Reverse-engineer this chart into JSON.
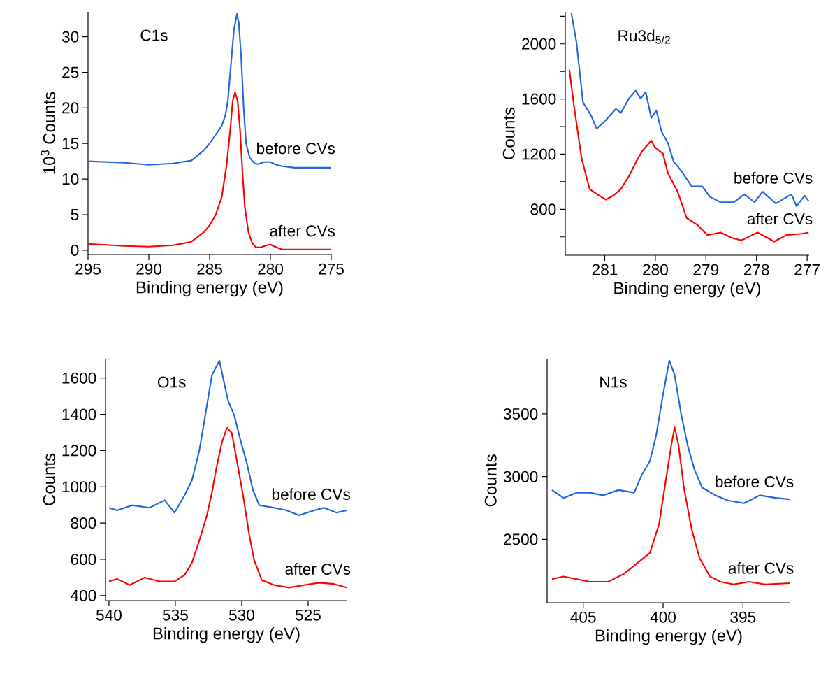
{
  "chart_data": [
    {
      "type": "line",
      "title": "C1s",
      "xlabel": "Binding energy (eV)",
      "ylabel": "10$^{3}$ Counts",
      "xlim": [
        295,
        275
      ],
      "ylim": [
        -0.6,
        33.5
      ],
      "xticks": [
        295,
        290,
        285,
        280,
        275
      ],
      "yticks": [
        0,
        5,
        10,
        15,
        20,
        25,
        30
      ],
      "series": [
        {
          "name": "before CVs",
          "color": "#2266dd",
          "x": [
            295,
            292,
            290,
            288,
            286.5,
            285.5,
            285,
            284,
            283.7,
            283.5,
            283.2,
            283.0,
            282.75,
            282.6,
            282.4,
            282.2,
            282.0,
            281.7,
            281.3,
            281.0,
            280.5,
            280.0,
            279.5,
            279.0,
            278.0,
            277.0,
            275.0
          ],
          "values": [
            12.5,
            12.3,
            12.0,
            12.2,
            12.6,
            14.0,
            15.0,
            17.5,
            19.0,
            21.0,
            27.0,
            31.0,
            33.2,
            32.0,
            27.0,
            20.0,
            15.0,
            13.0,
            12.2,
            12.1,
            12.4,
            12.4,
            12.0,
            11.8,
            11.6,
            11.6,
            11.6
          ]
        },
        {
          "name": "after CVs",
          "color": "#ff0000",
          "x": [
            295,
            292,
            290,
            288,
            286.5,
            285.5,
            285,
            284.5,
            284,
            283.6,
            283.3,
            283.1,
            282.9,
            282.7,
            282.5,
            282.3,
            282.1,
            281.8,
            281.5,
            281.2,
            280.8,
            280.3,
            280.0,
            279.5,
            279.0,
            277.0,
            275.0
          ],
          "values": [
            0.9,
            0.6,
            0.5,
            0.7,
            1.2,
            2.5,
            3.5,
            5.0,
            7.5,
            12.0,
            17.0,
            21.0,
            22.2,
            21.0,
            17.0,
            11.0,
            6.0,
            2.5,
            1.0,
            0.4,
            0.4,
            0.7,
            0.8,
            0.4,
            0.1,
            0.1,
            0.1
          ]
        }
      ]
    },
    {
      "type": "line",
      "title": "Ru3d$_{5/2}$",
      "xlabel": "Binding energy (eV)",
      "ylabel": "Counts",
      "xlim": [
        281.78,
        276.96
      ],
      "ylim": [
        467,
        2232
      ],
      "xticks": [
        281,
        280,
        279,
        278,
        277
      ],
      "yticks": [
        {
          "value": 600,
          "label": null
        },
        800,
        {
          "value": 1000,
          "label": null
        },
        1200,
        {
          "value": 1400,
          "label": null
        },
        1600,
        {
          "value": 1800,
          "label": null
        },
        2000,
        {
          "value": 2200,
          "label": null
        }
      ],
      "series": [
        {
          "name": "before CVs",
          "color": "#2266dd",
          "x": [
            281.66,
            281.56,
            281.43,
            281.27,
            281.16,
            280.99,
            280.78,
            280.68,
            280.52,
            280.39,
            280.29,
            280.19,
            280.08,
            279.98,
            279.88,
            279.75,
            279.64,
            279.49,
            279.28,
            279.07,
            278.92,
            278.71,
            278.45,
            278.24,
            278.04,
            277.88,
            277.62,
            277.31,
            277.21,
            277.05,
            276.97
          ],
          "values": [
            2225,
            2013,
            1575,
            1480,
            1385,
            1442,
            1528,
            1500,
            1604,
            1661,
            1604,
            1651,
            1461,
            1518,
            1366,
            1280,
            1147,
            1080,
            966,
            966,
            890,
            851,
            851,
            909,
            851,
            928,
            842,
            909,
            823,
            899,
            861
          ]
        },
        {
          "name": "after CVs",
          "color": "#ff0000",
          "x": [
            281.7,
            281.61,
            281.46,
            281.3,
            281.15,
            280.98,
            280.83,
            280.68,
            280.52,
            280.39,
            280.26,
            280.08,
            280.01,
            279.85,
            279.75,
            279.56,
            279.38,
            279.18,
            278.97,
            278.71,
            278.5,
            278.3,
            277.98,
            277.65,
            277.41,
            277.1,
            276.97
          ],
          "values": [
            1813,
            1556,
            1175,
            947,
            909,
            870,
            899,
            947,
            1042,
            1137,
            1223,
            1299,
            1251,
            1204,
            1061,
            928,
            737,
            690,
            613,
            632,
            594,
            575,
            632,
            566,
            613,
            623,
            632
          ]
        }
      ]
    },
    {
      "type": "line",
      "title": "O1s",
      "xlabel": "Binding energy (eV)",
      "ylabel": "Counts",
      "xlim": [
        540.26,
        522.05
      ],
      "ylim": [
        372,
        1707
      ],
      "xticks": [
        540,
        535,
        530,
        525
      ],
      "yticks": [
        400,
        600,
        800,
        1000,
        1200,
        1400,
        1600
      ],
      "series": [
        {
          "name": "before CVs",
          "color": "#2266dd",
          "x": [
            540,
            539.38,
            538.25,
            536.94,
            535.81,
            535.06,
            534.31,
            533.75,
            533.19,
            532.81,
            532.25,
            531.68,
            531.4,
            531.03,
            530.56,
            530.09,
            529.62,
            529.15,
            528.68,
            527.55,
            526.62,
            525.68,
            524.55,
            523.8,
            522.86,
            522.11
          ],
          "values": [
            884,
            870,
            898,
            884,
            926,
            857,
            953,
            1036,
            1201,
            1366,
            1614,
            1696,
            1600,
            1476,
            1394,
            1256,
            1132,
            981,
            898,
            884,
            870,
            843,
            870,
            884,
            857,
            870
          ]
        },
        {
          "name": "after CVs",
          "color": "#ff0000",
          "x": [
            540,
            539.38,
            538.44,
            537.32,
            536.19,
            535.06,
            534.31,
            533.75,
            533.19,
            532.62,
            532.25,
            531.87,
            531.5,
            531.12,
            530.75,
            530.37,
            529.9,
            529.43,
            529.06,
            528.49,
            527.55,
            526.43,
            525.3,
            524.17,
            523.05,
            522.1
          ],
          "values": [
            478,
            492,
            458,
            499,
            478,
            478,
            513,
            581,
            705,
            843,
            967,
            1118,
            1242,
            1325,
            1297,
            1146,
            953,
            733,
            595,
            485,
            458,
            444,
            458,
            471,
            464,
            444
          ]
        }
      ]
    },
    {
      "type": "line",
      "title": "N1s",
      "xlabel": "Binding energy (eV)",
      "ylabel": "Counts",
      "xlim": [
        407.26,
        392.04
      ],
      "ylim": [
        1995,
        3940
      ],
      "xticks": [
        405,
        400,
        395
      ],
      "yticks": [
        2500,
        3000,
        3500
      ],
      "series": [
        {
          "name": "before CVs",
          "color": "#2266dd",
          "x": [
            406.96,
            406.23,
            405.41,
            404.59,
            403.77,
            402.79,
            401.81,
            401.32,
            400.83,
            400.43,
            400.02,
            399.61,
            399.28,
            398.87,
            398.46,
            398.05,
            397.56,
            396.73,
            395.91,
            394.93,
            393.95,
            392.97,
            392.07
          ],
          "values": [
            2893,
            2830,
            2872,
            2872,
            2851,
            2893,
            2872,
            3018,
            3122,
            3331,
            3644,
            3926,
            3811,
            3498,
            3247,
            3060,
            2913,
            2851,
            2809,
            2788,
            2851,
            2830,
            2819
          ]
        },
        {
          "name": "after CVs",
          "color": "#ff0000",
          "x": [
            406.96,
            406.23,
            405.41,
            404.59,
            403.45,
            402.46,
            401.64,
            400.83,
            400.25,
            399.85,
            399.49,
            399.28,
            399.03,
            398.7,
            398.21,
            397.72,
            397.06,
            396.41,
            395.59,
            394.6,
            393.62,
            392.07
          ],
          "values": [
            2183,
            2204,
            2183,
            2162,
            2162,
            2224,
            2308,
            2391,
            2621,
            2955,
            3247,
            3394,
            3247,
            2913,
            2579,
            2350,
            2204,
            2162,
            2141,
            2162,
            2141,
            2151
          ]
        }
      ]
    }
  ]
}
